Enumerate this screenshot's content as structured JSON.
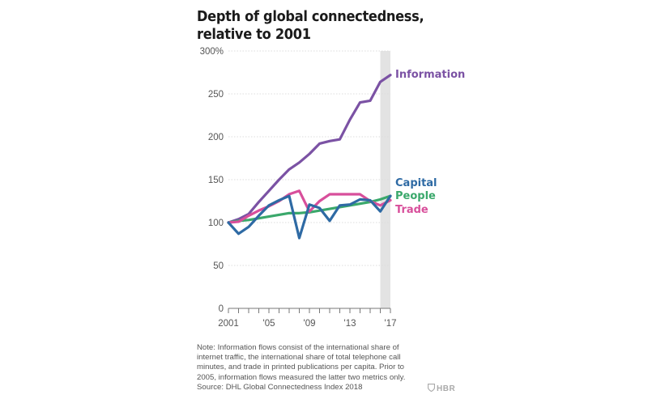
{
  "title_line1": "Depth of global connectedness,",
  "title_line2": "relative to 2001",
  "note_lines": [
    "Note: Information flows consist of the international share of",
    "internet traffic, the international share of total telephone call",
    "minutes, and trade in printed publications per capita. Prior to",
    "2005, information flows measured the latter two metrics only.",
    "Source: DHL Global Connectedness Index 2018"
  ],
  "brand": "HBR",
  "chart_data": {
    "type": "line",
    "title": "Depth of global connectedness, relative to 2001",
    "xlabel": "",
    "ylabel": "",
    "x": [
      2001,
      2002,
      2003,
      2004,
      2005,
      2006,
      2007,
      2008,
      2009,
      2010,
      2011,
      2012,
      2013,
      2014,
      2015,
      2016,
      2017
    ],
    "xlim": [
      2001,
      2017
    ],
    "ylim": [
      0,
      300
    ],
    "y_ticks": [
      {
        "value": 300,
        "label": "300%"
      },
      {
        "value": 250,
        "label": "250"
      },
      {
        "value": 200,
        "label": "200"
      },
      {
        "value": 150,
        "label": "150"
      },
      {
        "value": 100,
        "label": "100"
      },
      {
        "value": 50,
        "label": "50"
      },
      {
        "value": 0,
        "label": "0"
      }
    ],
    "x_ticks": [
      {
        "value": 2001,
        "label": "2001"
      },
      {
        "value": 2005,
        "label": "'05"
      },
      {
        "value": 2009,
        "label": "'09"
      },
      {
        "value": 2013,
        "label": "'13"
      },
      {
        "value": 2017,
        "label": "'17"
      }
    ],
    "highlight_band": [
      2016,
      2017
    ],
    "colors": {
      "highlight": "#e3e3e3",
      "grid": "#dcdcdc",
      "axis": "#777777",
      "label": "#555555"
    },
    "series": [
      {
        "name": "Information",
        "color": "#7b52a4",
        "values": [
          100,
          104,
          110,
          124,
          137,
          150,
          162,
          170,
          180,
          192,
          195,
          197,
          220,
          240,
          242,
          264,
          272
        ]
      },
      {
        "name": "Capital",
        "color": "#2e6aa4",
        "values": [
          100,
          87,
          95,
          108,
          120,
          126,
          131,
          82,
          121,
          117,
          102,
          120,
          121,
          127,
          126,
          113,
          131
        ]
      },
      {
        "name": "People",
        "color": "#3aa86b",
        "values": [
          100,
          102,
          103,
          105,
          107,
          109,
          111,
          111,
          112,
          114,
          116,
          118,
          120,
          122,
          124,
          127,
          131
        ]
      },
      {
        "name": "Trade",
        "color": "#d84f9b",
        "values": [
          100,
          101,
          108,
          114,
          119,
          125,
          133,
          137,
          113,
          125,
          133,
          133,
          133,
          133,
          125,
          120,
          126
        ]
      }
    ]
  }
}
